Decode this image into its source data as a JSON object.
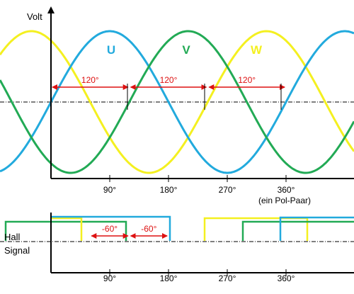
{
  "chart_data": [
    {
      "type": "line",
      "ylabel": "Volt",
      "x_ticks": [
        90,
        180,
        270,
        360
      ],
      "x_tick_labels": [
        "90°",
        "180°",
        "270°",
        "360°"
      ],
      "x_note": "(ein Pol-Paar)",
      "amplitude": 1.0,
      "series": [
        {
          "name": "U",
          "color": "#22aadd",
          "phase_deg": 0
        },
        {
          "name": "V",
          "color": "#22aa55",
          "phase_deg": -120
        },
        {
          "name": "W",
          "color": "#f4f020",
          "phase_deg": -240
        }
      ],
      "phase_spacing": [
        {
          "from_deg": 0,
          "to_deg": 120,
          "label": "120°"
        },
        {
          "from_deg": 120,
          "to_deg": 240,
          "label": "120°"
        },
        {
          "from_deg": 240,
          "to_deg": 360,
          "label": "120°"
        }
      ]
    },
    {
      "type": "line",
      "ylabel": "Hall Signal",
      "x_ticks": [
        90,
        180,
        270,
        360
      ],
      "x_tick_labels": [
        "90°",
        "180°",
        "270°",
        "360°"
      ],
      "offsets": [
        {
          "from_deg": 60,
          "to_deg": 120,
          "label": "-60°"
        },
        {
          "from_deg": 120,
          "to_deg": 180,
          "label": "-60°"
        }
      ]
    }
  ]
}
